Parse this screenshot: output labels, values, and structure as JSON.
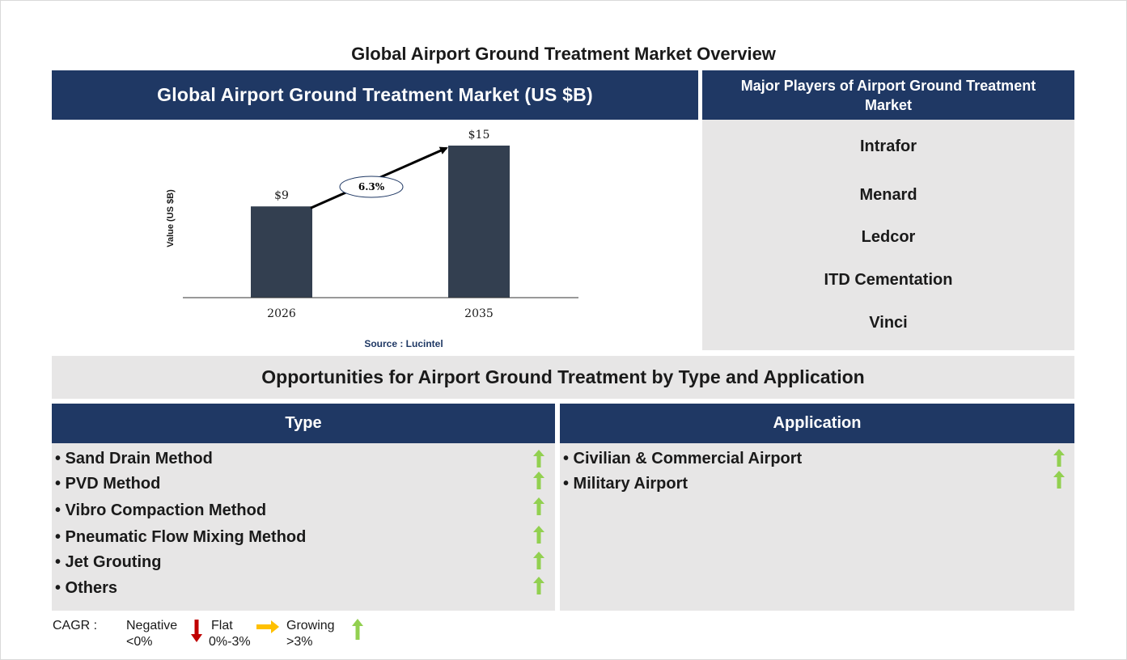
{
  "page_title": "Global Airport Ground Treatment Market Overview",
  "chart_panel": {
    "header": "Global Airport Ground Treatment Market (US $B)",
    "source": "Source : Lucintel"
  },
  "chart_data": {
    "type": "bar",
    "categories": [
      "2026",
      "2035"
    ],
    "values": [
      9,
      15
    ],
    "data_labels": [
      "$9",
      "$15"
    ],
    "ylabel": "Value (US $B)",
    "ylim": [
      0,
      15
    ],
    "grid": false,
    "bar_color": "#333f50",
    "annotation": {
      "label": "6.3%",
      "type": "CAGR arrow from first to last bar"
    }
  },
  "players": {
    "header": "Major Players of Airport Ground Treatment Market",
    "items": [
      "Intrafor",
      "Menard",
      "Ledcor",
      "ITD Cementation",
      "Vinci"
    ]
  },
  "opportunities": {
    "banner": "Opportunities for Airport Ground Treatment by Type and Application",
    "type": {
      "header": "Type",
      "items": [
        {
          "label": "• Sand Drain Method",
          "trend": "growing"
        },
        {
          "label": "• PVD Method",
          "trend": "growing"
        },
        {
          "label": "• Vibro Compaction Method",
          "trend": "growing"
        },
        {
          "label": "• Pneumatic Flow Mixing Method",
          "trend": "growing"
        },
        {
          "label": "• Jet Grouting",
          "trend": "growing"
        },
        {
          "label": "• Others",
          "trend": "growing"
        }
      ]
    },
    "application": {
      "header": "Application",
      "items": [
        {
          "label": "• Civilian & Commercial Airport",
          "trend": "growing"
        },
        {
          "label": "• Military Airport",
          "trend": "growing"
        }
      ]
    }
  },
  "legend": {
    "cagr_label": "CAGR :",
    "negative": {
      "name": "Negative",
      "range": "<0%",
      "color": "#c00000",
      "icon": "down-arrow-icon"
    },
    "flat": {
      "name": "Flat",
      "range": "0%-3%",
      "color": "#ffc000",
      "icon": "right-arrow-icon"
    },
    "growing": {
      "name": "Growing",
      "range": ">3%",
      "color": "#92d050",
      "icon": "up-arrow-icon"
    }
  },
  "colors": {
    "navy": "#1f3864",
    "panel_grey": "#e7e6e6",
    "bar": "#333f50",
    "growing": "#92d050"
  }
}
